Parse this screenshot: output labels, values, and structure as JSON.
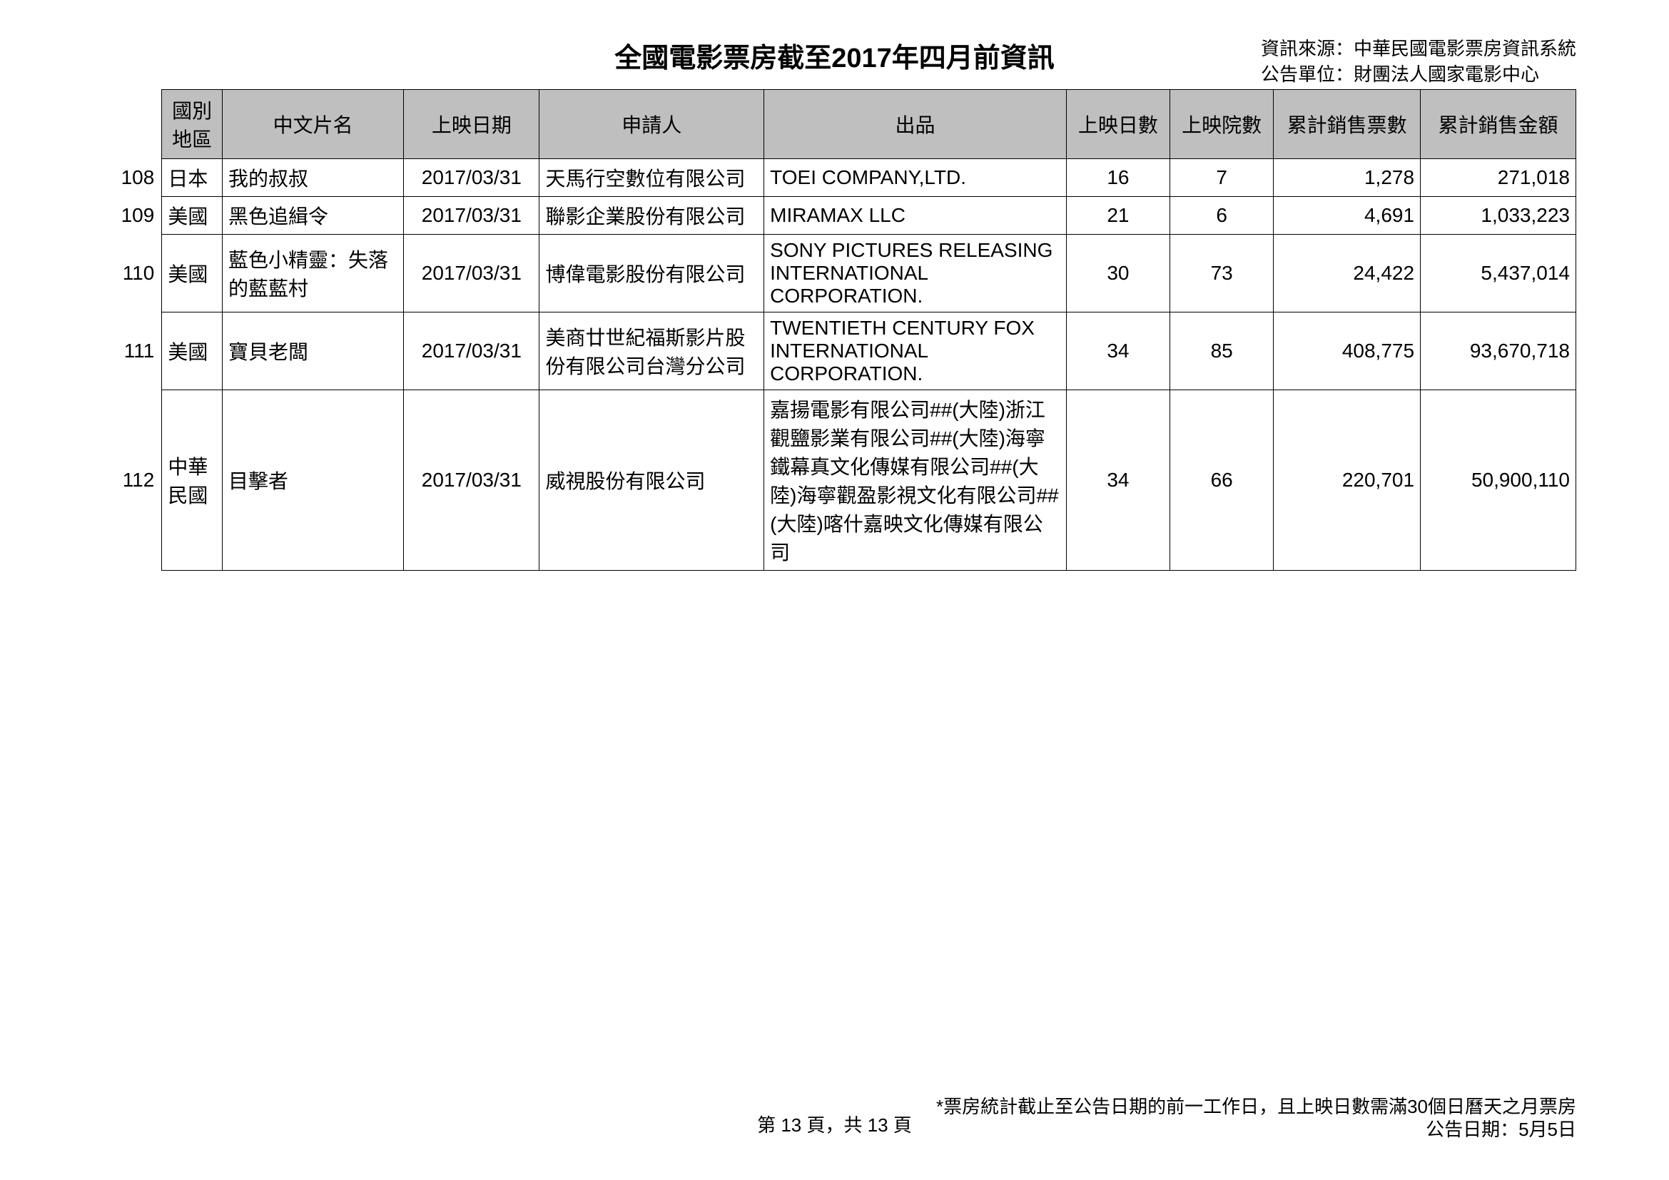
{
  "header": {
    "title": "全國電影票房截至2017年四月前資訊",
    "source_line1": "資訊來源：中華民國電影票房資訊系統",
    "source_line2": "公告單位：財團法人國家電影中心"
  },
  "columns": {
    "country": "國別地區",
    "name": "中文片名",
    "date": "上映日期",
    "applicant": "申請人",
    "producer": "出品",
    "days": "上映日數",
    "theaters": "上映院數",
    "tickets": "累計銷售票數",
    "revenue": "累計銷售金額"
  },
  "rows": [
    {
      "num": "108",
      "country": "日本",
      "name": "我的叔叔",
      "date": "2017/03/31",
      "applicant": "天馬行空數位有限公司",
      "producer": "TOEI COMPANY,LTD.",
      "days": "16",
      "theaters": "7",
      "tickets": "1,278",
      "revenue": "271,018"
    },
    {
      "num": "109",
      "country": "美國",
      "name": "黑色追緝令",
      "date": "2017/03/31",
      "applicant": "聯影企業股份有限公司",
      "producer": "MIRAMAX LLC",
      "days": "21",
      "theaters": "6",
      "tickets": "4,691",
      "revenue": "1,033,223"
    },
    {
      "num": "110",
      "country": "美國",
      "name": "藍色小精靈：失落的藍藍村",
      "date": "2017/03/31",
      "applicant": "博偉電影股份有限公司",
      "producer": "SONY PICTURES RELEASING INTERNATIONAL CORPORATION.",
      "days": "30",
      "theaters": "73",
      "tickets": "24,422",
      "revenue": "5,437,014"
    },
    {
      "num": "111",
      "country": "美國",
      "name": "寶貝老闆",
      "date": "2017/03/31",
      "applicant": "美商廿世紀福斯影片股份有限公司台灣分公司",
      "producer": "TWENTIETH CENTURY FOX INTERNATIONAL CORPORATION.",
      "days": "34",
      "theaters": "85",
      "tickets": "408,775",
      "revenue": "93,670,718"
    },
    {
      "num": "112",
      "country": "中華民國",
      "name": "目擊者",
      "date": "2017/03/31",
      "applicant": "威視股份有限公司",
      "producer": "嘉揚電影有限公司##(大陸)浙江觀鹽影業有限公司##(大陸)海寧鐵幕真文化傳媒有限公司##(大陸)海寧觀盈影視文化有限公司##(大陸)喀什嘉映文化傳媒有限公司",
      "days": "34",
      "theaters": "66",
      "tickets": "220,701",
      "revenue": "50,900,110"
    }
  ],
  "footer": {
    "page": "第 13 頁，共 13 頁",
    "note": "*票房統計截止至公告日期的前一工作日，且上映日數需滿30個日曆天之月票房",
    "date": "公告日期：5月5日"
  }
}
